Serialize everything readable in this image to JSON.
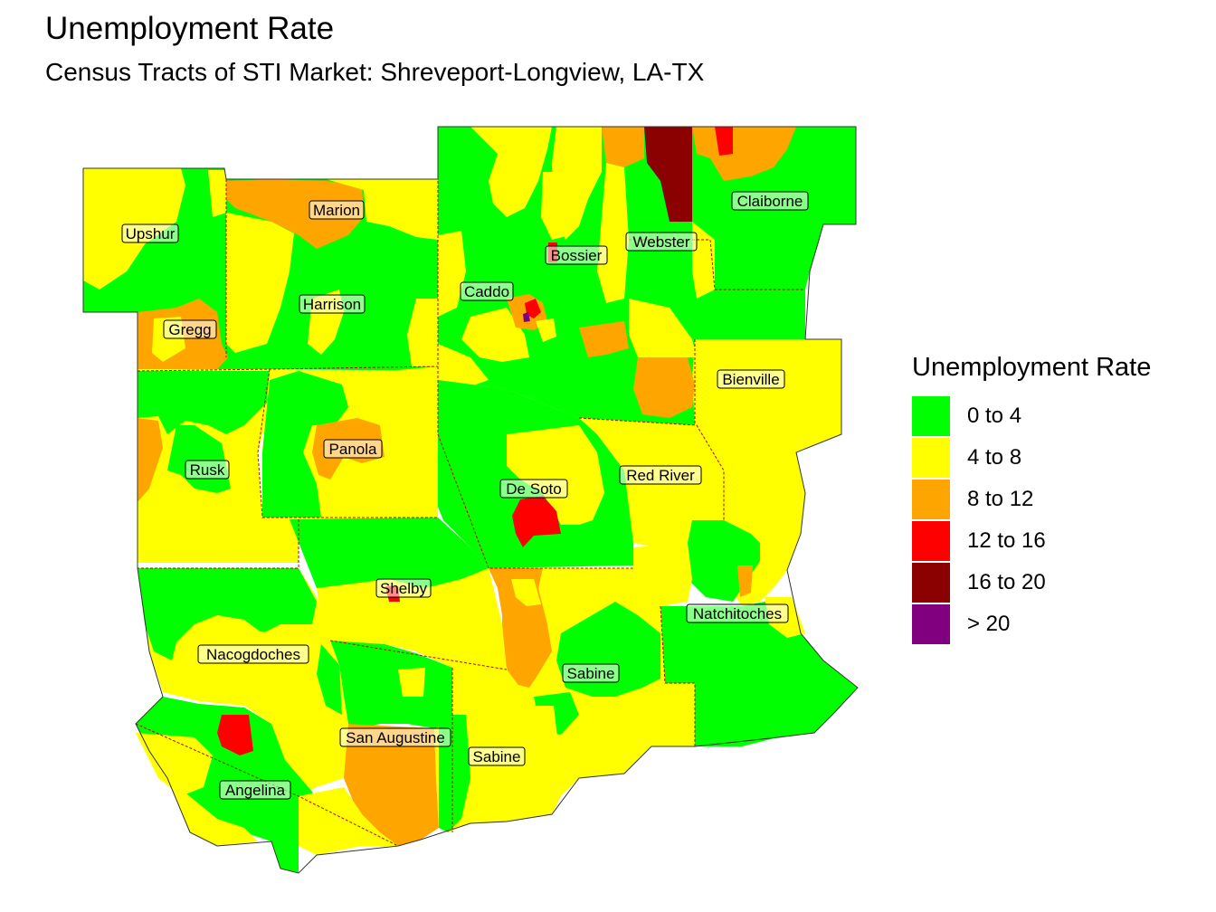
{
  "title": "Unemployment Rate",
  "subtitle": "Census Tracts of STI Market: Shreveport-Longview, LA-TX",
  "legend": {
    "title": "Unemployment Rate",
    "items": [
      {
        "label": "0 to 4",
        "color": "#00ff00"
      },
      {
        "label": "4 to 8",
        "color": "#ffff00"
      },
      {
        "label": "8 to 12",
        "color": "#ffa500"
      },
      {
        "label": "12 to 16",
        "color": "#ff0000"
      },
      {
        "label": "16 to 20",
        "color": "#8b0000"
      },
      {
        "label": "> 20",
        "color": "#800080"
      }
    ]
  },
  "counties": [
    {
      "name": "Marion"
    },
    {
      "name": "Upshur"
    },
    {
      "name": "Harrison"
    },
    {
      "name": "Gregg"
    },
    {
      "name": "Caddo"
    },
    {
      "name": "Bossier"
    },
    {
      "name": "Webster"
    },
    {
      "name": "Claiborne"
    },
    {
      "name": "Bienville"
    },
    {
      "name": "Panola"
    },
    {
      "name": "Rusk"
    },
    {
      "name": "De Soto"
    },
    {
      "name": "Red River"
    },
    {
      "name": "Shelby"
    },
    {
      "name": "Natchitoches"
    },
    {
      "name": "Nacogdoches"
    },
    {
      "name": "Sabine"
    },
    {
      "name": "San Augustine"
    },
    {
      "name": "Sabine"
    },
    {
      "name": "Angelina"
    }
  ]
}
